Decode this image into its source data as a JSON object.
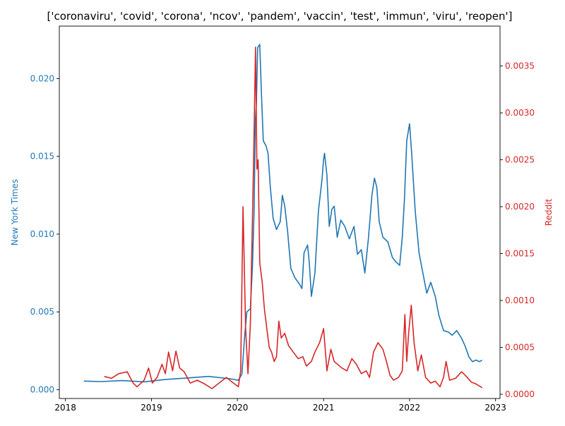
{
  "chart_data": {
    "type": "line",
    "title": "['coronaviru', 'covid', 'corona', 'ncov', 'pandem', 'vaccin', 'test', 'immun', 'viru', 'reopen']",
    "x_axis": {
      "type": "date",
      "range": [
        "2017-12-06",
        "2023-01-20"
      ],
      "ticks": [
        {
          "x": "2018-01-01",
          "label": "2018"
        },
        {
          "x": "2019-01-01",
          "label": "2019"
        },
        {
          "x": "2020-01-01",
          "label": "2020"
        },
        {
          "x": "2021-01-01",
          "label": "2021"
        },
        {
          "x": "2022-01-01",
          "label": "2022"
        },
        {
          "x": "2023-01-01",
          "label": "2023"
        }
      ]
    },
    "y_left": {
      "label": "New York Times",
      "color": "#1f77b4",
      "range": [
        -0.00057,
        0.02338
      ],
      "ticks": [
        {
          "v": 0.0,
          "label": "0.000"
        },
        {
          "v": 0.005,
          "label": "0.005"
        },
        {
          "v": 0.01,
          "label": "0.010"
        },
        {
          "v": 0.015,
          "label": "0.015"
        },
        {
          "v": 0.02,
          "label": "0.020"
        }
      ]
    },
    "y_right": {
      "label": "Reddit",
      "color": "#d62728",
      "range": [
        -4.5e-05,
        0.003925
      ],
      "ticks": [
        {
          "v": 0.0,
          "label": "0.0000"
        },
        {
          "v": 0.0005,
          "label": "0.0005"
        },
        {
          "v": 0.001,
          "label": "0.0010"
        },
        {
          "v": 0.0015,
          "label": "0.0015"
        },
        {
          "v": 0.002,
          "label": "0.0020"
        },
        {
          "v": 0.0025,
          "label": "0.0025"
        },
        {
          "v": 0.003,
          "label": "0.0030"
        },
        {
          "v": 0.0035,
          "label": "0.0035"
        }
      ]
    },
    "series": [
      {
        "name": "New York Times",
        "color": "#1f77b4",
        "axis": "left",
        "points": [
          [
            "2018-03-20",
            0.00055
          ],
          [
            "2018-06-01",
            0.00052
          ],
          [
            "2018-09-01",
            0.00058
          ],
          [
            "2018-12-01",
            0.0005
          ],
          [
            "2019-03-01",
            0.00065
          ],
          [
            "2019-06-01",
            0.00075
          ],
          [
            "2019-09-01",
            0.00085
          ],
          [
            "2019-12-01",
            0.0007
          ],
          [
            "2020-01-05",
            0.0006
          ],
          [
            "2020-01-20",
            0.001
          ],
          [
            "2020-02-01",
            0.0035
          ],
          [
            "2020-02-10",
            0.005
          ],
          [
            "2020-02-25",
            0.0052
          ],
          [
            "2020-03-05",
            0.008
          ],
          [
            "2020-03-12",
            0.0115
          ],
          [
            "2020-03-17",
            0.0172
          ],
          [
            "2020-03-22",
            0.0185
          ],
          [
            "2020-03-27",
            0.022
          ],
          [
            "2020-04-05",
            0.0222
          ],
          [
            "2020-04-12",
            0.019
          ],
          [
            "2020-04-20",
            0.016
          ],
          [
            "2020-05-01",
            0.0157
          ],
          [
            "2020-05-10",
            0.0152
          ],
          [
            "2020-05-20",
            0.013
          ],
          [
            "2020-06-01",
            0.011
          ],
          [
            "2020-06-15",
            0.0103
          ],
          [
            "2020-07-01",
            0.0108
          ],
          [
            "2020-07-10",
            0.0125
          ],
          [
            "2020-07-20",
            0.0118
          ],
          [
            "2020-08-01",
            0.0102
          ],
          [
            "2020-08-15",
            0.0078
          ],
          [
            "2020-09-01",
            0.0072
          ],
          [
            "2020-09-20",
            0.0068
          ],
          [
            "2020-10-01",
            0.0065
          ],
          [
            "2020-10-10",
            0.0088
          ],
          [
            "2020-10-25",
            0.0093
          ],
          [
            "2020-11-01",
            0.0082
          ],
          [
            "2020-11-10",
            0.006
          ],
          [
            "2020-11-25",
            0.0075
          ],
          [
            "2020-12-10",
            0.0115
          ],
          [
            "2020-12-25",
            0.0135
          ],
          [
            "2021-01-01",
            0.0148
          ],
          [
            "2021-01-05",
            0.0152
          ],
          [
            "2021-01-15",
            0.0138
          ],
          [
            "2021-01-25",
            0.0105
          ],
          [
            "2021-02-05",
            0.0116
          ],
          [
            "2021-02-15",
            0.0118
          ],
          [
            "2021-02-28",
            0.0098
          ],
          [
            "2021-03-15",
            0.0109
          ],
          [
            "2021-04-01",
            0.0105
          ],
          [
            "2021-04-20",
            0.0097
          ],
          [
            "2021-05-10",
            0.0105
          ],
          [
            "2021-05-25",
            0.0087
          ],
          [
            "2021-06-10",
            0.009
          ],
          [
            "2021-06-25",
            0.0075
          ],
          [
            "2021-07-10",
            0.0097
          ],
          [
            "2021-07-25",
            0.0125
          ],
          [
            "2021-08-05",
            0.0136
          ],
          [
            "2021-08-15",
            0.013
          ],
          [
            "2021-08-25",
            0.0108
          ],
          [
            "2021-09-10",
            0.0098
          ],
          [
            "2021-10-01",
            0.0095
          ],
          [
            "2021-10-20",
            0.0085
          ],
          [
            "2021-11-05",
            0.0082
          ],
          [
            "2021-11-20",
            0.008
          ],
          [
            "2021-12-01",
            0.0098
          ],
          [
            "2021-12-10",
            0.0122
          ],
          [
            "2021-12-20",
            0.016
          ],
          [
            "2022-01-01",
            0.0171
          ],
          [
            "2022-01-10",
            0.0152
          ],
          [
            "2022-01-25",
            0.0115
          ],
          [
            "2022-02-10",
            0.0088
          ],
          [
            "2022-03-01",
            0.0073
          ],
          [
            "2022-03-15",
            0.0062
          ],
          [
            "2022-04-01",
            0.0069
          ],
          [
            "2022-04-20",
            0.006
          ],
          [
            "2022-05-05",
            0.0048
          ],
          [
            "2022-05-25",
            0.0038
          ],
          [
            "2022-06-15",
            0.0037
          ],
          [
            "2022-07-01",
            0.0035
          ],
          [
            "2022-07-20",
            0.0038
          ],
          [
            "2022-08-10",
            0.0033
          ],
          [
            "2022-08-25",
            0.0028
          ],
          [
            "2022-09-10",
            0.0021
          ],
          [
            "2022-09-25",
            0.0018
          ],
          [
            "2022-10-10",
            0.0019
          ],
          [
            "2022-10-25",
            0.0018
          ],
          [
            "2022-11-05",
            0.0019
          ]
        ]
      },
      {
        "name": "Reddit",
        "color": "#d62728",
        "axis": "right",
        "points": [
          [
            "2018-06-15",
            0.00019
          ],
          [
            "2018-07-15",
            0.00017
          ],
          [
            "2018-08-15",
            0.00022
          ],
          [
            "2018-09-20",
            0.00024
          ],
          [
            "2018-10-15",
            0.00012
          ],
          [
            "2018-11-01",
            8e-05
          ],
          [
            "2018-12-01",
            0.00015
          ],
          [
            "2018-12-20",
            0.00028
          ],
          [
            "2019-01-05",
            0.00012
          ],
          [
            "2019-01-25",
            0.00018
          ],
          [
            "2019-02-15",
            0.00032
          ],
          [
            "2019-03-01",
            0.00022
          ],
          [
            "2019-03-15",
            0.00045
          ],
          [
            "2019-04-01",
            0.00025
          ],
          [
            "2019-04-15",
            0.00046
          ],
          [
            "2019-05-01",
            0.00028
          ],
          [
            "2019-05-20",
            0.00024
          ],
          [
            "2019-06-15",
            0.00012
          ],
          [
            "2019-07-15",
            0.00015
          ],
          [
            "2019-08-15",
            0.00011
          ],
          [
            "2019-09-15",
            6e-05
          ],
          [
            "2019-10-15",
            0.00012
          ],
          [
            "2019-11-15",
            0.00018
          ],
          [
            "2019-12-15",
            0.00012
          ],
          [
            "2020-01-05",
            8e-05
          ],
          [
            "2020-01-15",
            0.00025
          ],
          [
            "2020-01-25",
            0.002
          ],
          [
            "2020-02-05",
            0.0007
          ],
          [
            "2020-02-15",
            0.00022
          ],
          [
            "2020-02-25",
            0.00075
          ],
          [
            "2020-03-10",
            0.0025
          ],
          [
            "2020-03-18",
            0.0037
          ],
          [
            "2020-03-24",
            0.0024
          ],
          [
            "2020-03-29",
            0.0025
          ],
          [
            "2020-04-05",
            0.0014
          ],
          [
            "2020-04-15",
            0.0012
          ],
          [
            "2020-04-25",
            0.0009
          ],
          [
            "2020-05-05",
            0.0007
          ],
          [
            "2020-05-15",
            0.0005
          ],
          [
            "2020-05-25",
            0.00045
          ],
          [
            "2020-06-05",
            0.00035
          ],
          [
            "2020-06-15",
            0.0004
          ],
          [
            "2020-06-25",
            0.00078
          ],
          [
            "2020-07-05",
            0.0006
          ],
          [
            "2020-07-20",
            0.00065
          ],
          [
            "2020-08-05",
            0.00052
          ],
          [
            "2020-08-25",
            0.00045
          ],
          [
            "2020-09-15",
            0.00038
          ],
          [
            "2020-10-05",
            0.0004
          ],
          [
            "2020-10-20",
            0.0003
          ],
          [
            "2020-11-10",
            0.00035
          ],
          [
            "2020-11-25",
            0.00045
          ],
          [
            "2020-12-15",
            0.00055
          ],
          [
            "2021-01-01",
            0.0007
          ],
          [
            "2021-01-15",
            0.00025
          ],
          [
            "2021-02-01",
            0.00048
          ],
          [
            "2021-02-15",
            0.00035
          ],
          [
            "2021-03-01",
            0.00032
          ],
          [
            "2021-03-20",
            0.00028
          ],
          [
            "2021-04-10",
            0.00025
          ],
          [
            "2021-05-01",
            0.00038
          ],
          [
            "2021-05-20",
            0.00032
          ],
          [
            "2021-06-10",
            0.00022
          ],
          [
            "2021-07-01",
            0.00025
          ],
          [
            "2021-07-15",
            0.00018
          ],
          [
            "2021-08-01",
            0.00045
          ],
          [
            "2021-08-20",
            0.00055
          ],
          [
            "2021-09-10",
            0.00048
          ],
          [
            "2021-09-25",
            0.00035
          ],
          [
            "2021-10-10",
            0.0002
          ],
          [
            "2021-10-25",
            0.00015
          ],
          [
            "2021-11-15",
            0.00018
          ],
          [
            "2021-12-01",
            0.00025
          ],
          [
            "2021-12-12",
            0.00085
          ],
          [
            "2021-12-20",
            0.00035
          ],
          [
            "2021-12-28",
            0.00065
          ],
          [
            "2022-01-08",
            0.00095
          ],
          [
            "2022-01-20",
            0.00055
          ],
          [
            "2022-02-05",
            0.00025
          ],
          [
            "2022-02-20",
            0.00042
          ],
          [
            "2022-03-10",
            0.00018
          ],
          [
            "2022-04-01",
            0.00012
          ],
          [
            "2022-04-20",
            0.00014
          ],
          [
            "2022-05-10",
            8e-05
          ],
          [
            "2022-05-25",
            0.00018
          ],
          [
            "2022-06-05",
            0.00035
          ],
          [
            "2022-06-20",
            0.00015
          ],
          [
            "2022-07-15",
            0.00017
          ],
          [
            "2022-08-10",
            0.00024
          ],
          [
            "2022-08-30",
            0.00019
          ],
          [
            "2022-09-20",
            0.00013
          ],
          [
            "2022-10-10",
            0.00011
          ],
          [
            "2022-11-05",
            7e-05
          ]
        ]
      }
    ]
  }
}
